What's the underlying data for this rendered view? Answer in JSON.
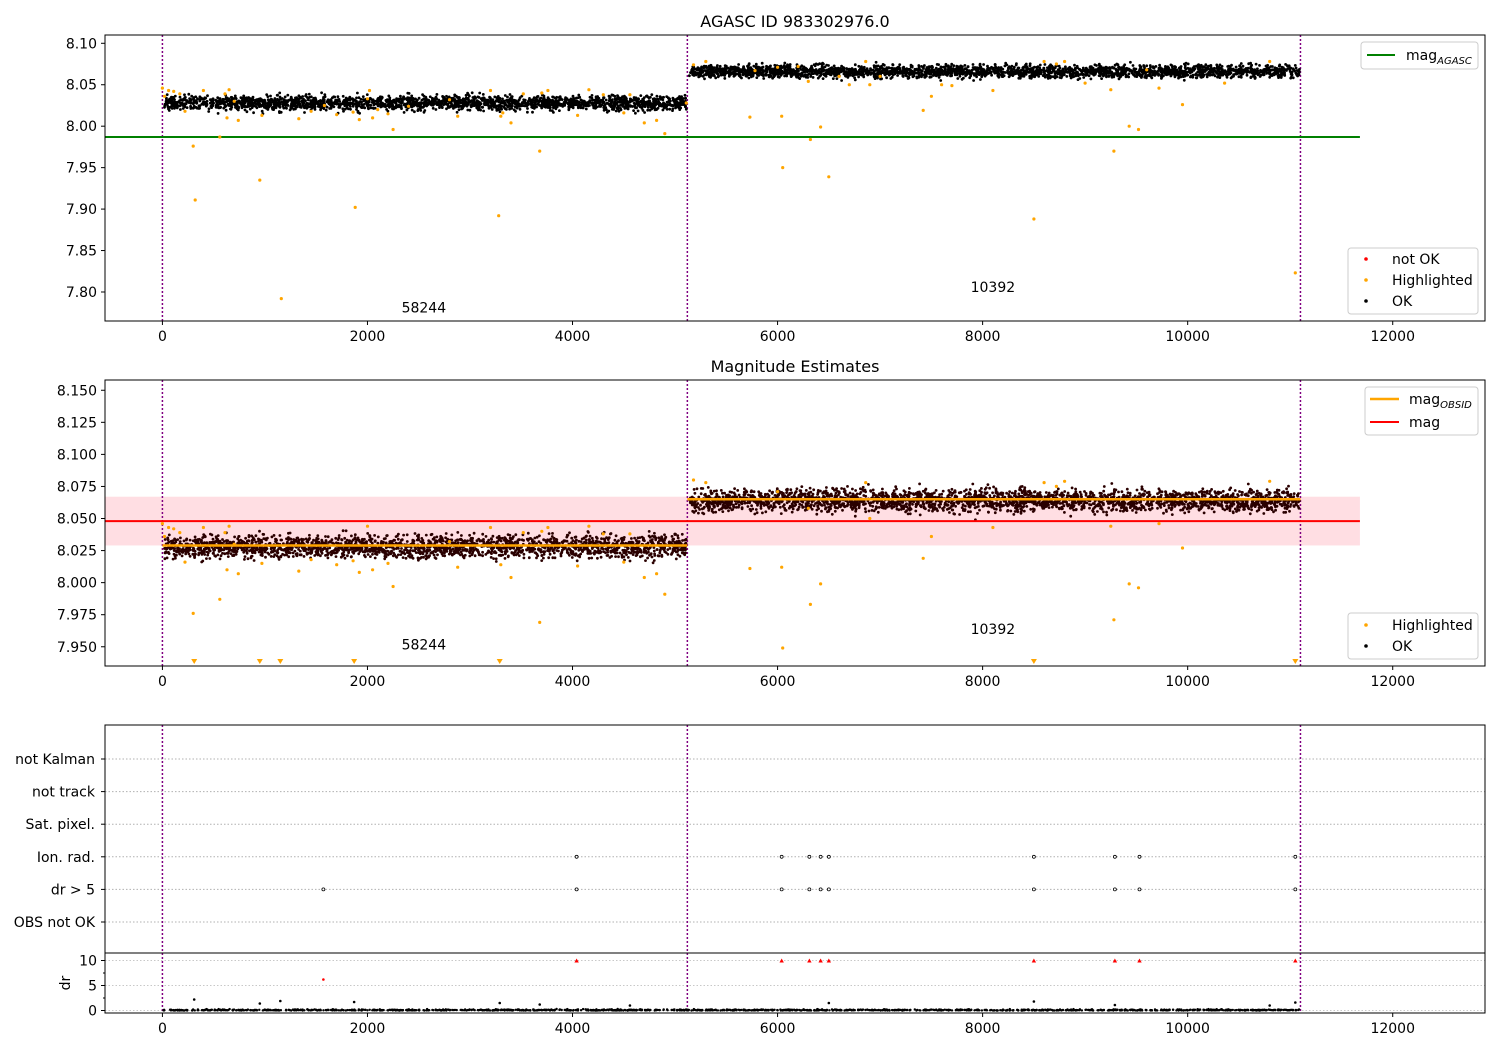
{
  "chart_data": [
    {
      "type": "scatter",
      "title": "AGASC ID 983302976.0",
      "ylim": [
        7.765,
        8.11
      ],
      "xlim": [
        -560,
        12900
      ],
      "xticks": [
        0,
        2000,
        4000,
        6000,
        8000,
        10000,
        12000
      ],
      "yticks": [
        "7.80",
        "7.85",
        "7.90",
        "7.95",
        "8.00",
        "8.05",
        "8.10"
      ],
      "grid": false,
      "obs_boundaries": [
        0,
        5120,
        11100
      ],
      "segments": [
        {
          "label": "58244",
          "x_start": 0,
          "x_end": 5120,
          "mean": 8.028,
          "spread": 0.007,
          "label_x": 2550,
          "label_y": 7.775
        },
        {
          "label": "10392",
          "x_start": 5120,
          "x_end": 11100,
          "mean": 8.066,
          "spread": 0.006,
          "label_x": 8100,
          "label_y": 7.8
        }
      ],
      "reference_lines": [
        {
          "name": "mag$_{AGASC}$",
          "value": 7.987,
          "x_range": [
            0,
            11680
          ],
          "color": "#008000"
        }
      ],
      "highlighted": [
        [
          0,
          8.046
        ],
        [
          20,
          8.036
        ],
        [
          60,
          8.043
        ],
        [
          110,
          8.042
        ],
        [
          170,
          8.039
        ],
        [
          220,
          8.018
        ],
        [
          300,
          7.976
        ],
        [
          320,
          7.911
        ],
        [
          400,
          8.043
        ],
        [
          560,
          7.987
        ],
        [
          610,
          8.039
        ],
        [
          630,
          8.01
        ],
        [
          650,
          8.044
        ],
        [
          700,
          8.03
        ],
        [
          740,
          8.007
        ],
        [
          950,
          7.935
        ],
        [
          970,
          8.013
        ],
        [
          1160,
          7.792
        ],
        [
          1330,
          8.009
        ],
        [
          1450,
          8.018
        ],
        [
          1580,
          8.025
        ],
        [
          1700,
          8.014
        ],
        [
          1860,
          8.017
        ],
        [
          1880,
          7.902
        ],
        [
          1920,
          8.008
        ],
        [
          2000,
          8.033
        ],
        [
          2020,
          8.043
        ],
        [
          2050,
          8.01
        ],
        [
          2100,
          8.02
        ],
        [
          2200,
          8.015
        ],
        [
          2250,
          7.996
        ],
        [
          2400,
          8.024
        ],
        [
          2800,
          8.032
        ],
        [
          2880,
          8.012
        ],
        [
          3200,
          8.043
        ],
        [
          3280,
          7.892
        ],
        [
          3300,
          8.012
        ],
        [
          3320,
          8.016
        ],
        [
          3400,
          8.004
        ],
        [
          3520,
          8.039
        ],
        [
          3680,
          7.97
        ],
        [
          3700,
          8.04
        ],
        [
          3760,
          8.043
        ],
        [
          4050,
          8.013
        ],
        [
          4160,
          8.044
        ],
        [
          4300,
          8.038
        ],
        [
          4500,
          8.016
        ],
        [
          4560,
          8.038
        ],
        [
          4700,
          8.004
        ],
        [
          4820,
          8.007
        ],
        [
          4900,
          7.991
        ],
        [
          5110,
          8.028
        ],
        [
          5180,
          8.074
        ],
        [
          5300,
          8.078
        ],
        [
          5730,
          8.011
        ],
        [
          5780,
          8.067
        ],
        [
          6000,
          8.071
        ],
        [
          6040,
          8.012
        ],
        [
          6050,
          7.95
        ],
        [
          6200,
          8.072
        ],
        [
          6300,
          8.054
        ],
        [
          6320,
          7.984
        ],
        [
          6420,
          7.999
        ],
        [
          6500,
          7.939
        ],
        [
          6600,
          8.06
        ],
        [
          6700,
          8.05
        ],
        [
          6860,
          8.078
        ],
        [
          6900,
          8.05
        ],
        [
          7000,
          8.06
        ],
        [
          7420,
          8.019
        ],
        [
          7500,
          8.036
        ],
        [
          7600,
          8.05
        ],
        [
          7700,
          8.049
        ],
        [
          8100,
          8.043
        ],
        [
          8500,
          7.888
        ],
        [
          8600,
          8.078
        ],
        [
          8720,
          8.075
        ],
        [
          8800,
          8.078
        ],
        [
          9000,
          8.052
        ],
        [
          9250,
          8.044
        ],
        [
          9280,
          7.97
        ],
        [
          9430,
          8.0
        ],
        [
          9520,
          7.996
        ],
        [
          9600,
          8.068
        ],
        [
          9720,
          8.046
        ],
        [
          9950,
          8.026
        ],
        [
          10360,
          8.052
        ],
        [
          10800,
          8.078
        ],
        [
          11050,
          7.823
        ]
      ]
    },
    {
      "type": "scatter",
      "title": "Magnitude Estimates",
      "ylim": [
        7.935,
        8.158
      ],
      "xlim": [
        -560,
        12900
      ],
      "xticks": [
        0,
        2000,
        4000,
        6000,
        8000,
        10000,
        12000
      ],
      "yticks": [
        "7.950",
        "7.975",
        "8.000",
        "8.025",
        "8.050",
        "8.075",
        "8.100",
        "8.125",
        "8.150"
      ],
      "grid": false,
      "obs_boundaries": [
        0,
        5120,
        11100
      ],
      "segments": [
        {
          "label": "58244",
          "x_start": 0,
          "x_end": 5120,
          "mean": 8.028,
          "spread": 0.007,
          "label_x": 2550,
          "label_y": 7.948
        },
        {
          "label": "10392",
          "x_start": 5120,
          "x_end": 11100,
          "mean": 8.064,
          "spread": 0.007,
          "label_x": 8100,
          "label_y": 7.96
        }
      ],
      "mag_obsid": [
        {
          "x_range": [
            0,
            5120
          ],
          "value": 8.029
        },
        {
          "x_range": [
            5120,
            11100
          ],
          "value": 8.065
        }
      ],
      "mag": {
        "value": 8.048,
        "band": [
          8.029,
          8.067
        ],
        "x_range": [
          0,
          11680
        ]
      },
      "legend": [
        "mag$_{OBSID}$",
        "mag"
      ],
      "highlighted": [
        [
          0,
          8.046
        ],
        [
          20,
          8.036
        ],
        [
          60,
          8.043
        ],
        [
          110,
          8.042
        ],
        [
          170,
          8.039
        ],
        [
          220,
          8.016
        ],
        [
          300,
          7.976
        ],
        [
          400,
          8.043
        ],
        [
          560,
          7.987
        ],
        [
          610,
          8.039
        ],
        [
          630,
          8.01
        ],
        [
          650,
          8.044
        ],
        [
          700,
          8.03
        ],
        [
          740,
          8.007
        ],
        [
          970,
          8.015
        ],
        [
          1330,
          8.009
        ],
        [
          1450,
          8.018
        ],
        [
          1700,
          8.014
        ],
        [
          1860,
          8.017
        ],
        [
          1920,
          8.008
        ],
        [
          2000,
          8.044
        ],
        [
          2050,
          8.01
        ],
        [
          2200,
          8.015
        ],
        [
          2250,
          7.997
        ],
        [
          2800,
          8.032
        ],
        [
          2880,
          8.012
        ],
        [
          3200,
          8.043
        ],
        [
          3300,
          8.014
        ],
        [
          3400,
          8.004
        ],
        [
          3520,
          8.039
        ],
        [
          3680,
          7.969
        ],
        [
          3700,
          8.04
        ],
        [
          3760,
          8.043
        ],
        [
          4050,
          8.013
        ],
        [
          4160,
          8.044
        ],
        [
          4300,
          8.038
        ],
        [
          4500,
          8.016
        ],
        [
          4560,
          8.038
        ],
        [
          4700,
          8.004
        ],
        [
          4820,
          8.007
        ],
        [
          4900,
          7.991
        ],
        [
          5180,
          8.08
        ],
        [
          5300,
          8.078
        ],
        [
          5730,
          8.011
        ],
        [
          6000,
          8.071
        ],
        [
          6040,
          8.012
        ],
        [
          6050,
          7.949
        ],
        [
          6300,
          8.058
        ],
        [
          6320,
          7.983
        ],
        [
          6420,
          7.999
        ],
        [
          6860,
          8.078
        ],
        [
          6900,
          8.05
        ],
        [
          7420,
          8.019
        ],
        [
          7500,
          8.036
        ],
        [
          8100,
          8.043
        ],
        [
          8600,
          8.078
        ],
        [
          8720,
          8.075
        ],
        [
          8800,
          8.079
        ],
        [
          9250,
          8.044
        ],
        [
          9280,
          7.971
        ],
        [
          9430,
          7.999
        ],
        [
          9520,
          7.996
        ],
        [
          9720,
          8.046
        ],
        [
          9950,
          8.027
        ],
        [
          10800,
          8.079
        ]
      ],
      "below_axis": [
        310,
        950,
        1150,
        1870,
        3290,
        8500,
        11050
      ]
    },
    {
      "type": "scatter",
      "xlim": [
        -560,
        12900
      ],
      "xticks": [
        0,
        2000,
        4000,
        6000,
        8000,
        10000,
        12000
      ],
      "obs_boundaries": [
        0,
        5120,
        11100
      ],
      "flag_rows": [
        "not Kalman",
        "not track",
        "Sat. pixel.",
        "Ion. rad.",
        "dr > 5",
        "OBS not OK"
      ],
      "flag_points": {
        "Ion. rad.": [
          4040,
          6040,
          6310,
          6420,
          6500,
          8500,
          9290,
          9530,
          11050
        ],
        "dr > 5": [
          1570,
          4040,
          6040,
          6310,
          6420,
          6500,
          8500,
          9290,
          9530,
          11050
        ]
      },
      "dr_ylim": [
        -0.5,
        11.5
      ],
      "ylabel": "dr",
      "dr_yticks": [
        "0",
        "5",
        "10"
      ],
      "dr_clipped": [
        4040,
        6040,
        6310,
        6420,
        6500,
        8500,
        9290,
        9530,
        11050
      ],
      "dr_outliers": [
        [
          310,
          2.2
        ],
        [
          950,
          1.4
        ],
        [
          1150,
          1.9
        ],
        [
          1570,
          6.2
        ],
        [
          1870,
          1.7
        ],
        [
          3290,
          1.5
        ],
        [
          3680,
          1.2
        ],
        [
          4560,
          1.0
        ],
        [
          6500,
          1.5
        ],
        [
          8500,
          1.8
        ],
        [
          9290,
          1.1
        ],
        [
          10800,
          1.0
        ],
        [
          11050,
          1.6
        ]
      ]
    }
  ],
  "legends": {
    "top": {
      "line": "mag",
      "line_sub": "AGASC",
      "points": [
        "not OK",
        "Highlighted",
        "OK"
      ]
    },
    "middle": {
      "line1": "mag",
      "line1_sub": "OBSID",
      "line2": "mag",
      "points": [
        "Highlighted",
        "OK"
      ]
    }
  },
  "colors": {
    "ok": "#000000",
    "highlighted": "#ffa500",
    "not_ok": "#ff0000",
    "agasc_line": "#008000",
    "mag_line": "#ff0000",
    "band": "#ffb6c1",
    "boundary": "#800080",
    "obsid_line": "#ffa500"
  }
}
